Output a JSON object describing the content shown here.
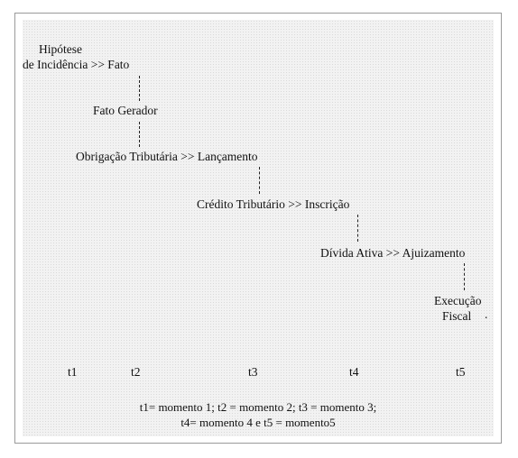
{
  "diagram": {
    "nodes": {
      "n1_line1": "Hipótese",
      "n1_line2": "de Incidência >> Fato",
      "n2": "Fato Gerador",
      "n3": "Obrigação Tributária >> Lançamento",
      "n4": "Crédito Tributário >> Inscrição",
      "n5": "Dívida Ativa >> Ajuizamento",
      "n6_line1": "Execução",
      "n6_line2": "Fiscal",
      "n6_mark": "."
    },
    "times": [
      "t1",
      "t2",
      "t3",
      "t4",
      "t5"
    ],
    "legend": {
      "line1": "t1= momento 1; t2 = momento 2; t3 = momento 3;",
      "line2": "t4= momento 4 e t5 = momento5"
    }
  }
}
